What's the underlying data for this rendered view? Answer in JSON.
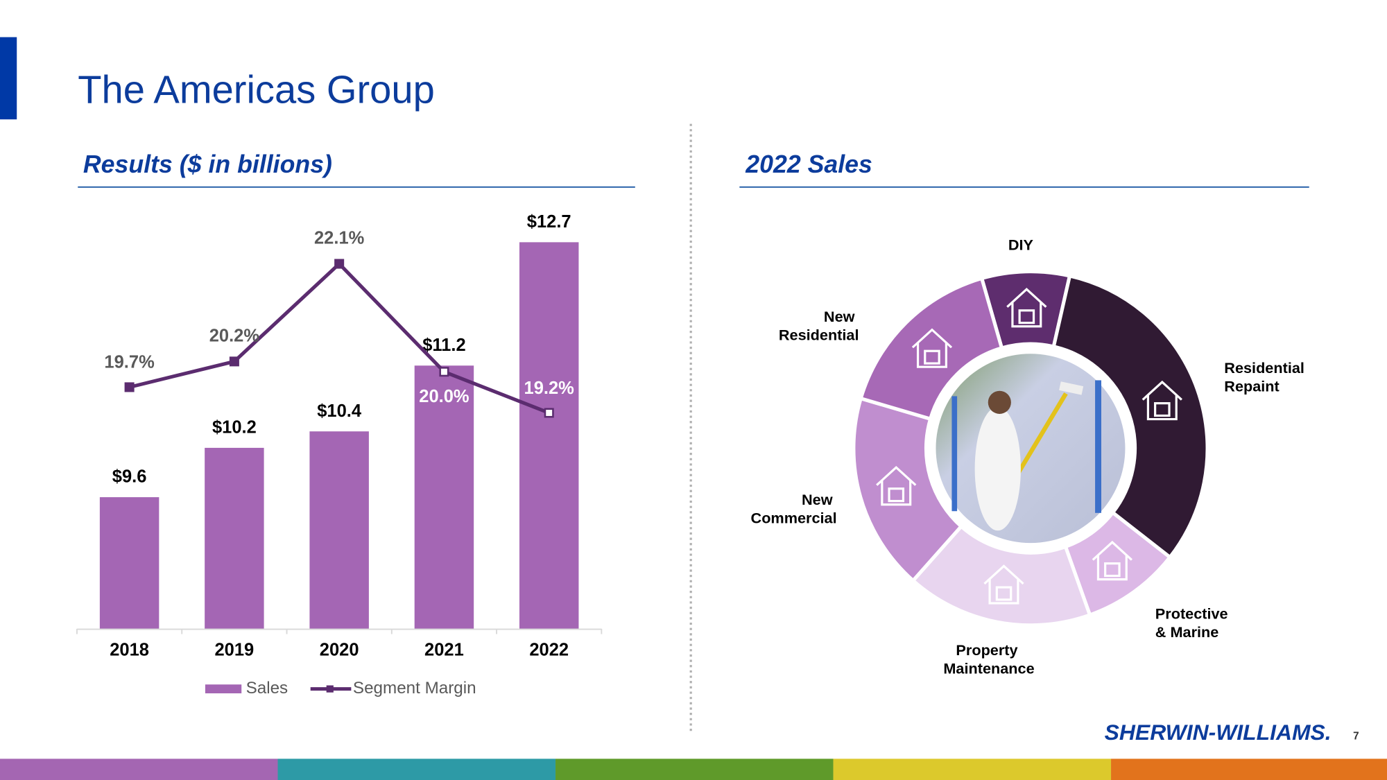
{
  "title": "The Americas Group",
  "logo": "SHERWIN-WILLIAMS.",
  "page_number": "7",
  "chart_data": [
    {
      "type": "bar",
      "title": "Results ($ in billions)",
      "categories": [
        "2018",
        "2019",
        "2020",
        "2021",
        "2022"
      ],
      "ylim": [
        8,
        13
      ],
      "y2lim": [
        15,
        23
      ],
      "series": [
        {
          "name": "Sales",
          "type": "bar",
          "color": "#a466b4",
          "values": [
            9.6,
            10.2,
            10.4,
            11.2,
            12.7
          ],
          "value_labels": [
            "$9.6",
            "$10.2",
            "$10.4",
            "$11.2",
            "$12.7"
          ]
        },
        {
          "name": "Segment Margin",
          "type": "line",
          "axis": "y2",
          "color": "#5b2c6f",
          "values": [
            19.7,
            20.2,
            22.1,
            20.0,
            19.2
          ],
          "value_labels": [
            "19.7%",
            "20.2%",
            "22.1%",
            "20.0%",
            "19.2%"
          ]
        }
      ]
    },
    {
      "type": "pie",
      "title": "2022 Sales",
      "categories": [
        "DIY",
        "Residential Repaint",
        "Protective & Marine",
        "Property Maintenance",
        "New Commercial",
        "New Residential"
      ],
      "values": [
        8,
        32,
        9,
        17,
        18,
        16
      ],
      "colors": [
        "#5e2d6e",
        "#301a33",
        "#dcb8e6",
        "#e8d5ef",
        "#c08ecf",
        "#a769b6"
      ]
    }
  ]
}
